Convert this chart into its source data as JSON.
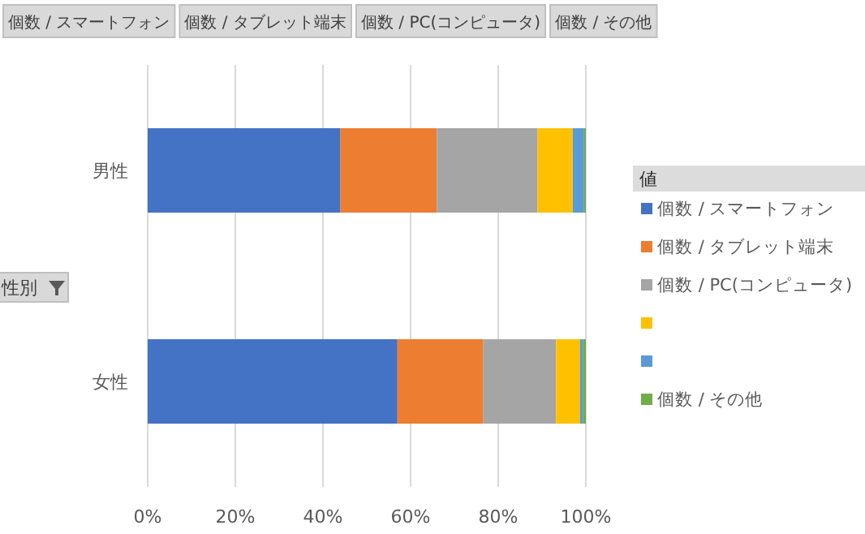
{
  "chart_data": {
    "type": "bar",
    "orientation": "horizontal",
    "stacked": true,
    "ylabel": "性別",
    "legend_title": "値",
    "legend": "right",
    "annotations": [
      "個数 / スマートフォン",
      "個数 / タブレット端末",
      "個数 / PC(コンピュータ)",
      null,
      null,
      "個数 / その他"
    ],
    "categories": [
      "男性",
      "女性"
    ],
    "series": [
      {
        "name": "個数 / スマートフォン",
        "color": "#4472c4",
        "values": [
          44,
          57
        ]
      },
      {
        "name": "個数 / タブレット端末",
        "color": "#ed7d31",
        "values": [
          22,
          19.6
        ]
      },
      {
        "name": "個数 / PC(コンピュータ)",
        "color": "#a5a5a5",
        "values": [
          23,
          16.6
        ]
      },
      {
        "color": "#ffc000",
        "values": [
          8,
          5.5
        ]
      },
      {
        "color": "#5b9bd5",
        "values": [
          2.6,
          0.7
        ]
      },
      {
        "name": "個数 / その他",
        "color": "#70ad47",
        "values": [
          0.4,
          0.6
        ]
      }
    ],
    "xlim": [
      0,
      100
    ],
    "xticks": [
      {
        "value": 0,
        "label": "0%"
      },
      {
        "value": 20,
        "label": "20%"
      },
      {
        "value": 40,
        "label": "40%"
      },
      {
        "value": 60,
        "label": "60%"
      },
      {
        "value": 80,
        "label": "80%"
      },
      {
        "value": 100,
        "label": "100%"
      }
    ],
    "grid": "x"
  }
}
